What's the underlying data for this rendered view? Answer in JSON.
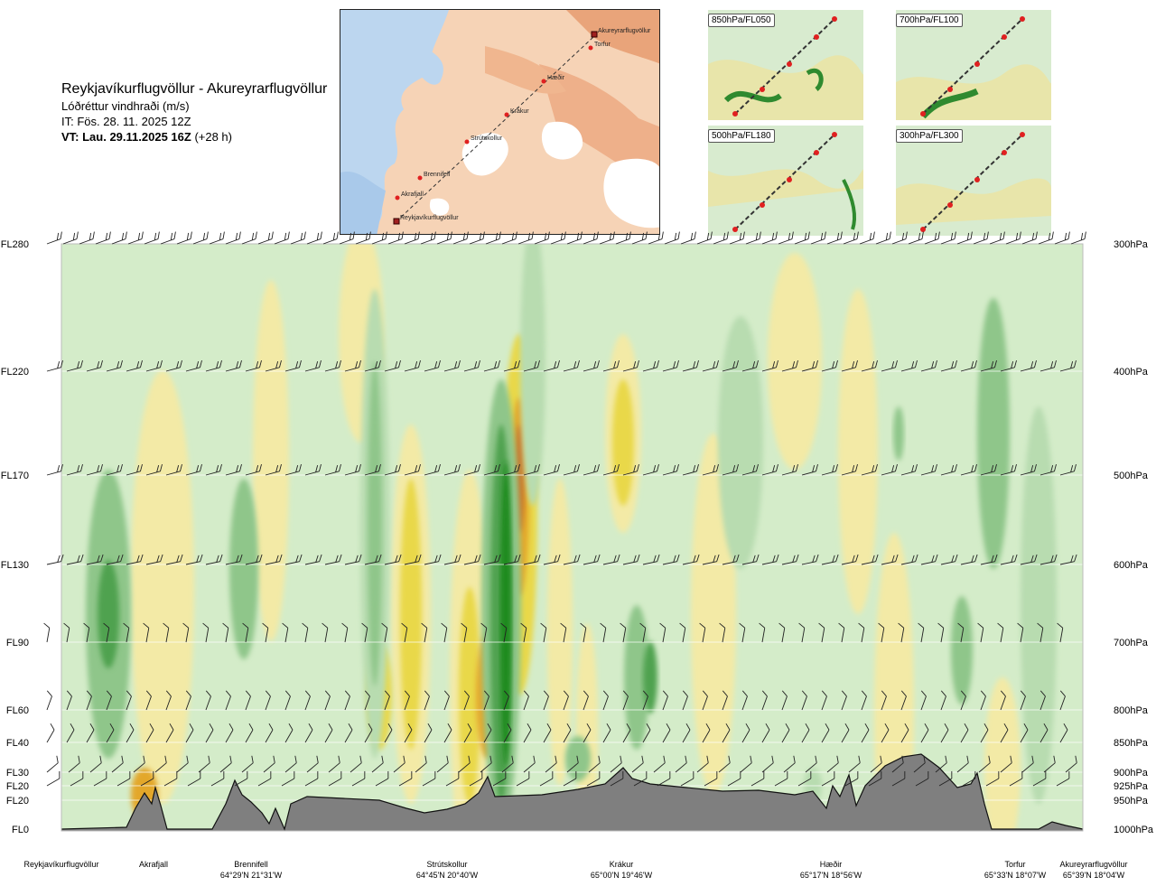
{
  "header": {
    "route": "Reykjavíkurflugvöllur - Akureyrarflugvöllur",
    "variable": "Lóðréttur vindhraði (m/s)",
    "issue_time": "IT: Fös. 28. 11. 2025 12Z",
    "valid_label": "VT: Lau. 29.11.2025 16Z",
    "valid_offset": "(+28 h)"
  },
  "map": {
    "waypoints": [
      {
        "name": "Reykjavíkurflugvöllur",
        "kind": "airport"
      },
      {
        "name": "Akrafjall",
        "kind": "point"
      },
      {
        "name": "Brennifell",
        "kind": "point"
      },
      {
        "name": "Strútskollur",
        "kind": "point"
      },
      {
        "name": "Krákur",
        "kind": "point"
      },
      {
        "name": "Hæðir",
        "kind": "point"
      },
      {
        "name": "Torfur",
        "kind": "point"
      },
      {
        "name": "Akureyrarflugvöllur",
        "kind": "airport"
      }
    ]
  },
  "thumbnails": [
    {
      "label": "850hPa/FL050"
    },
    {
      "label": "700hPa/FL100"
    },
    {
      "label": "500hPa/FL180"
    },
    {
      "label": "300hPa/FL300"
    }
  ],
  "chart_data": {
    "type": "heatmap",
    "title": "Lóðréttur vindhraði (m/s)",
    "y_axis_left": [
      "FL280",
      "FL220",
      "FL170",
      "FL130",
      "FL90",
      "FL60",
      "FL40",
      "FL30",
      "FL20",
      "FL20",
      "FL0"
    ],
    "y_axis_right": [
      "300hPa",
      "400hPa",
      "500hPa",
      "600hPa",
      "700hPa",
      "800hPa",
      "850hPa",
      "900hPa",
      "925hPa",
      "950hPa",
      "1000hPa"
    ],
    "pressure_levels_hpa": [
      300,
      400,
      500,
      600,
      700,
      800,
      850,
      900,
      925,
      950,
      1000
    ],
    "x_locations": [
      {
        "name": "Reykjavíkurflugvöllur",
        "coord": ""
      },
      {
        "name": "Akrafjall",
        "coord": ""
      },
      {
        "name": "Brennifell",
        "coord": "64°29'N 21°31'W"
      },
      {
        "name": "Strútskollur",
        "coord": "64°45'N 20°40'W"
      },
      {
        "name": "Krákur",
        "coord": "65°00'N 19°46'W"
      },
      {
        "name": "Hæðir",
        "coord": "65°17'N 18°56'W"
      },
      {
        "name": "Torfur",
        "coord": "65°33'N 18°07'W"
      },
      {
        "name": "Akureyrarflugvöllur",
        "coord": "65°39'N 18°04'W"
      }
    ],
    "colors": {
      "background": "#d4ecc9",
      "weak_up": "#f3eaa6",
      "up": "#e9d84a",
      "strong_up": "#e3a72c",
      "very_strong_up": "#c9772a",
      "weak_down": "#b8dcb0",
      "down": "#8fc68a",
      "strong_down": "#4fa24f",
      "very_strong_down": "#1f8a1f",
      "terrain": "#7f7f7f"
    },
    "grid": true
  }
}
